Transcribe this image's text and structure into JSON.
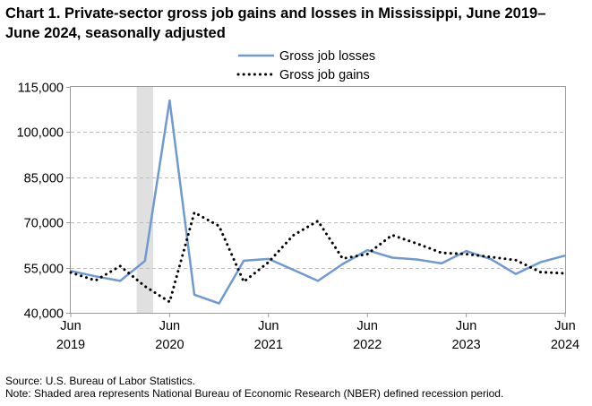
{
  "title": "Chart 1. Private-sector gross job gains and losses in Mississippi, June 2019–June 2024, seasonally adjusted",
  "source": "Source: U.S. Bureau of Labor Statistics.",
  "note": "Note: Shaded area represents National Bureau of Economic Research (NBER) defined recession period.",
  "chart_data": {
    "type": "line",
    "title": "Chart 1. Private-sector gross job gains and losses in Mississippi, June 2019–June 2024, seasonally adjusted",
    "xlabel": "",
    "ylabel": "",
    "ylim": [
      40000,
      115000
    ],
    "yticks": [
      40000,
      55000,
      70000,
      85000,
      100000,
      115000
    ],
    "ytick_labels": [
      "40,000",
      "55,000",
      "70,000",
      "85,000",
      "100,000",
      "115,000"
    ],
    "xtick_labels": [
      {
        "month": "Jun",
        "year": "2019"
      },
      {
        "month": "Jun",
        "year": "2020"
      },
      {
        "month": "Jun",
        "year": "2021"
      },
      {
        "month": "Jun",
        "year": "2022"
      },
      {
        "month": "Jun",
        "year": "2023"
      },
      {
        "month": "Jun",
        "year": "2024"
      }
    ],
    "x": [
      "Jun 2019",
      "Sep 2019",
      "Dec 2019",
      "Mar 2020",
      "Jun 2020",
      "Sep 2020",
      "Dec 2020",
      "Mar 2021",
      "Jun 2021",
      "Sep 2021",
      "Dec 2021",
      "Mar 2022",
      "Jun 2022",
      "Sep 2022",
      "Dec 2022",
      "Mar 2023",
      "Jun 2023",
      "Sep 2023",
      "Dec 2023",
      "Mar 2024",
      "Jun 2024"
    ],
    "series": [
      {
        "name": "Gross job losses",
        "color": "#6f99d1",
        "style": "solid",
        "values": [
          53900,
          52100,
          50600,
          57200,
          110500,
          46000,
          43100,
          57300,
          57900,
          54300,
          50600,
          56200,
          60800,
          58300,
          57700,
          56400,
          60500,
          57800,
          52900,
          56800,
          59000
        ]
      },
      {
        "name": "Gross job gains",
        "color": "#000000",
        "style": "dotted",
        "values": [
          53400,
          50700,
          55500,
          48800,
          43600,
          73300,
          68800,
          50300,
          56800,
          65700,
          70500,
          58000,
          59500,
          65800,
          63000,
          59900,
          59500,
          58500,
          57500,
          53500,
          53100
        ]
      }
    ],
    "recession": {
      "start": "Feb 2020",
      "end": "Apr 2020",
      "color": "#e0e0e0"
    },
    "grid": true,
    "legend_position": "top-center"
  }
}
